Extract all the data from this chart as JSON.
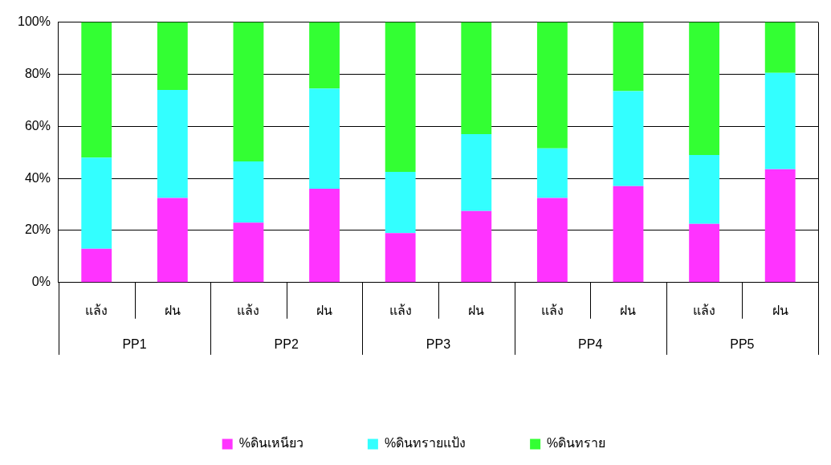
{
  "chart_data": {
    "type": "bar",
    "stacked": true,
    "categories": [
      "แล้ง",
      "ฝน",
      "แล้ง",
      "ฝน",
      "แล้ง",
      "ฝน",
      "แล้ง",
      "ฝน",
      "แล้ง",
      "ฝน"
    ],
    "series": [
      {
        "name": "%ดินเหนียว",
        "color": "#ff33ff",
        "values": [
          13,
          32.5,
          23,
          36,
          19,
          27.5,
          32.5,
          37,
          22.5,
          43.5
        ]
      },
      {
        "name": "%ดินทรายแป้ง",
        "color": "#33ffff",
        "values": [
          35,
          41.5,
          23.5,
          38.5,
          23.5,
          29.5,
          19,
          36.5,
          26.5,
          37
        ]
      },
      {
        "name": "%ดินทราย",
        "color": "#33ff33",
        "values": [
          52,
          26,
          53.5,
          25.5,
          57.5,
          43,
          48.5,
          26.5,
          51,
          19.5
        ]
      }
    ],
    "annotations": [
      "PP1",
      "PP2",
      "PP3",
      "PP4",
      "PP5"
    ],
    "ylim": [
      0,
      100
    ],
    "yticks": [
      {
        "value": 0,
        "label": "0%"
      },
      {
        "value": 20,
        "label": "20%"
      },
      {
        "value": 40,
        "label": "40%"
      },
      {
        "value": 60,
        "label": "60%"
      },
      {
        "value": 80,
        "label": "80%"
      },
      {
        "value": 100,
        "label": "100%"
      }
    ],
    "grid": "y",
    "legend": "bottom"
  }
}
